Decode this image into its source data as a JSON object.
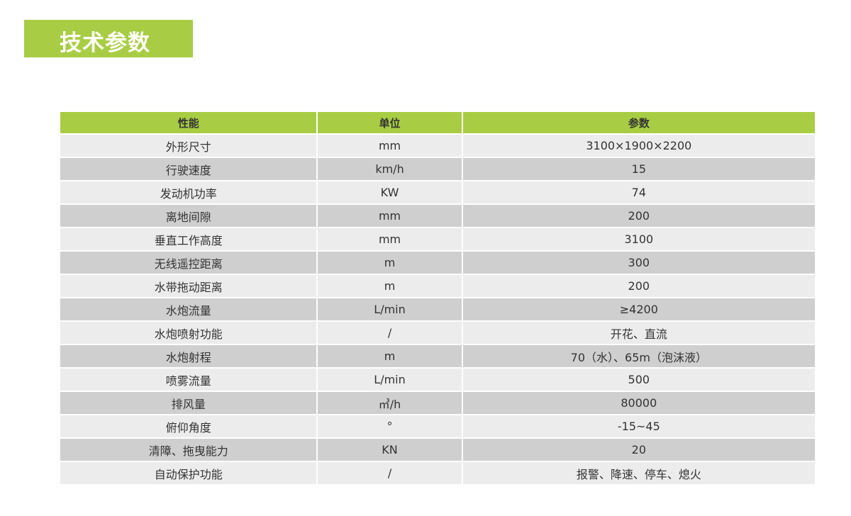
{
  "title": "技术参数",
  "colors": {
    "accent": "#a8cd44",
    "row_light": "#ececec",
    "row_dark": "#cfcfcf"
  },
  "table": {
    "headers": [
      "性能",
      "单位",
      "参数"
    ],
    "rows": [
      [
        "外形尺寸",
        "mm",
        "3100×1900×2200"
      ],
      [
        "行驶速度",
        "km/h",
        "15"
      ],
      [
        "发动机功率",
        "KW",
        "74"
      ],
      [
        "离地间隙",
        "mm",
        "200"
      ],
      [
        "垂直工作高度",
        "mm",
        "3100"
      ],
      [
        "无线遥控距离",
        "m",
        "300"
      ],
      [
        "水带拖动距离",
        "m",
        "200"
      ],
      [
        "水炮流量",
        "L/min",
        "≥4200"
      ],
      [
        "水炮喷射功能",
        "/",
        "开花、直流"
      ],
      [
        "水炮射程",
        "m",
        "70（水）、65m（泡沫液）"
      ],
      [
        "喷雾流量",
        "L/min",
        "500"
      ],
      [
        "排风量",
        "㎥/h",
        "80000"
      ],
      [
        "俯仰角度",
        "°",
        "-15~45"
      ],
      [
        "清障、拖曳能力",
        "KN",
        "20"
      ],
      [
        "自动保护功能",
        "/",
        "报警、降速、停车、熄火"
      ]
    ]
  }
}
